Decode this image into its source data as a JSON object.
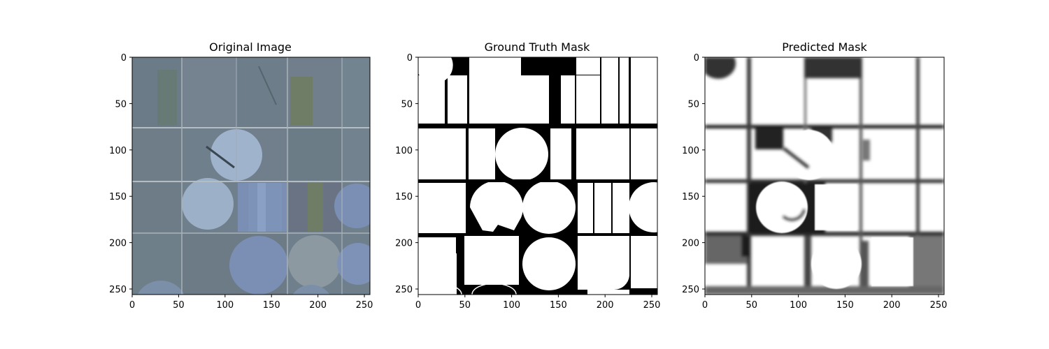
{
  "chart_data": [
    {
      "type": "image",
      "title": "Original Image",
      "xticks": [
        0,
        50,
        100,
        150,
        200,
        250
      ],
      "yticks": [
        0,
        50,
        100,
        150,
        200,
        250
      ],
      "xlim": [
        0,
        256
      ],
      "ylim": [
        256,
        0
      ],
      "grid": false,
      "content": "satellite-image"
    },
    {
      "type": "image",
      "title": "Ground Truth Mask",
      "xticks": [
        0,
        50,
        100,
        150,
        200,
        250
      ],
      "yticks": [
        0,
        50,
        100,
        150,
        200,
        250
      ],
      "xlim": [
        0,
        256
      ],
      "ylim": [
        256,
        0
      ],
      "grid": false,
      "content": "binary-mask",
      "colors": {
        "field": "#ffffff",
        "background": "#000000"
      }
    },
    {
      "type": "image",
      "title": "Predicted Mask",
      "xticks": [
        0,
        50,
        100,
        150,
        200,
        250
      ],
      "yticks": [
        0,
        50,
        100,
        150,
        200,
        250
      ],
      "xlim": [
        0,
        256
      ],
      "ylim": [
        256,
        0
      ],
      "grid": false,
      "content": "probability-mask",
      "colors": {
        "field": "#ffffff",
        "background": "#1a1a1a"
      }
    }
  ],
  "colors": {
    "satellite_base": "#6f7f8c",
    "pivot_light": "#9fb4cc",
    "pivot_blue": "#7a8fb3",
    "green_field": "#6f7d66",
    "road": "#b5bdc4"
  }
}
